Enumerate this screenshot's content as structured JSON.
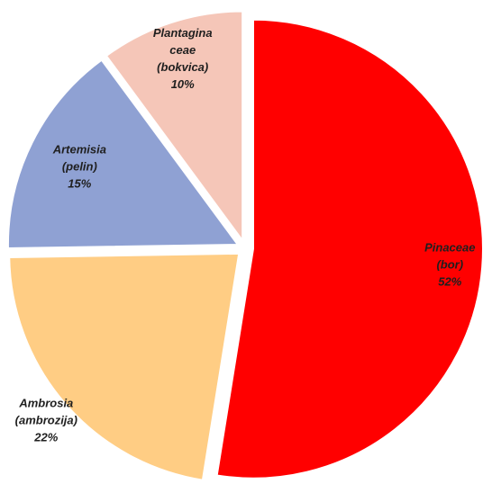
{
  "chart_data": {
    "type": "pie",
    "categories": [
      "Pinaceae\n(bor)",
      "Ambrosia\n(ambrozija)",
      "Artemisia\n(pelin)",
      "Plantagina\nceae\n(bokvica)"
    ],
    "values": [
      52,
      22,
      15,
      10
    ],
    "value_labels": [
      "52%",
      "22%",
      "15%",
      "10%"
    ],
    "colors": [
      "#ff0000",
      "#ffcd84",
      "#8fa1d3",
      "#f5c6b8"
    ]
  }
}
